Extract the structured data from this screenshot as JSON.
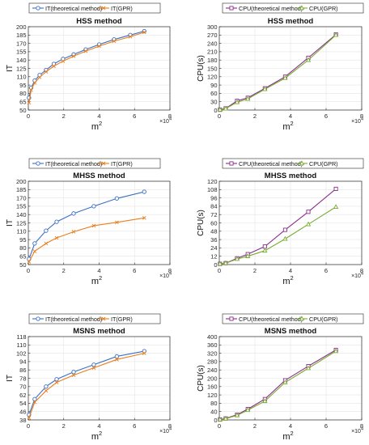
{
  "chart_data": [
    {
      "type": "line",
      "title": "HSS method",
      "xlabel": "m",
      "xlabel_sup": "2",
      "ylabel": "IT",
      "x_multiplier": "×10",
      "x_multiplier_exp": "4",
      "xlim": [
        0,
        8
      ],
      "ylim": [
        50,
        200
      ],
      "x_ticks": [
        "0",
        "2",
        "4",
        "6",
        "8"
      ],
      "y_ticks": [
        "50",
        "65",
        "80",
        "95",
        "110",
        "125",
        "140",
        "155",
        "170",
        "185",
        "200"
      ],
      "y_tick_values": [
        50,
        65,
        80,
        95,
        110,
        125,
        140,
        155,
        170,
        185,
        200
      ],
      "grid": true,
      "legend": "top (outside)",
      "series": [
        {
          "name": "IT(theoretical method)",
          "color": "#3b6fc4",
          "marker": "circle",
          "x": [
            0.04,
            0.16,
            0.36,
            0.64,
            1.0,
            1.44,
            1.96,
            2.56,
            3.24,
            4.0,
            4.84,
            5.76,
            6.55
          ],
          "y": [
            72,
            90,
            103,
            113,
            122,
            133,
            142,
            150,
            159,
            168,
            177,
            185,
            192
          ]
        },
        {
          "name": "IT(GPR)",
          "color": "#e87f1e",
          "marker": "x",
          "x": [
            0.04,
            0.16,
            0.36,
            0.64,
            1.0,
            1.44,
            1.96,
            2.56,
            3.24,
            4.0,
            4.84,
            5.76,
            6.55
          ],
          "y": [
            63,
            86,
            99,
            109,
            119,
            129,
            138,
            147,
            156,
            165,
            174,
            182,
            190
          ]
        }
      ]
    },
    {
      "type": "line",
      "title": "HSS method",
      "xlabel": "m",
      "xlabel_sup": "2",
      "ylabel": "CPU(s)",
      "x_multiplier": "×10",
      "x_multiplier_exp": "4",
      "xlim": [
        0,
        8
      ],
      "ylim": [
        0,
        300
      ],
      "x_ticks": [
        "0",
        "2",
        "4",
        "6",
        "8"
      ],
      "y_ticks": [
        "0",
        "30",
        "60",
        "90",
        "120",
        "150",
        "180",
        "210",
        "240",
        "270",
        "300"
      ],
      "y_tick_values": [
        0,
        30,
        60,
        90,
        120,
        150,
        180,
        210,
        240,
        270,
        300
      ],
      "grid": true,
      "legend": "top (outside)",
      "series": [
        {
          "name": "CPU(theoretical method)",
          "color": "#8b2f8c",
          "marker": "square",
          "x": [
            0.04,
            0.36,
            1.0,
            1.6,
            2.56,
            3.7,
            5.0,
            6.55
          ],
          "y": [
            1,
            6,
            33,
            44,
            78,
            120,
            188,
            272
          ]
        },
        {
          "name": "CPU(GPR)",
          "color": "#77ac30",
          "marker": "triangle",
          "x": [
            0.04,
            0.36,
            1.0,
            1.6,
            2.56,
            3.7,
            5.0,
            6.55
          ],
          "y": [
            1,
            5,
            28,
            40,
            75,
            115,
            180,
            270
          ]
        }
      ]
    },
    {
      "type": "line",
      "title": "MHSS method",
      "xlabel": "m",
      "xlabel_sup": "2",
      "ylabel": "IT",
      "x_multiplier": "×10",
      "x_multiplier_exp": "4",
      "xlim": [
        0,
        8
      ],
      "ylim": [
        50,
        200
      ],
      "x_ticks": [
        "0",
        "2",
        "4",
        "6",
        "8"
      ],
      "y_ticks": [
        "50",
        "65",
        "80",
        "95",
        "110",
        "125",
        "140",
        "155",
        "170",
        "185",
        "200"
      ],
      "y_tick_values": [
        50,
        65,
        80,
        95,
        110,
        125,
        140,
        155,
        170,
        185,
        200
      ],
      "grid": true,
      "legend": "top (outside)",
      "series": [
        {
          "name": "IT(theoretical method)",
          "color": "#3b6fc4",
          "marker": "circle",
          "x": [
            0.04,
            0.36,
            1.0,
            1.6,
            2.56,
            3.7,
            5.0,
            6.55
          ],
          "y": [
            60,
            88,
            111,
            127,
            142,
            155,
            169,
            181
          ]
        },
        {
          "name": "IT(GPR)",
          "color": "#e87f1e",
          "marker": "x",
          "x": [
            0.04,
            0.36,
            1.0,
            1.6,
            2.56,
            3.7,
            5.0,
            6.55
          ],
          "y": [
            55,
            74,
            88,
            98,
            109,
            120,
            126,
            134
          ]
        }
      ]
    },
    {
      "type": "line",
      "title": "MHSS method",
      "xlabel": "m",
      "xlabel_sup": "2",
      "ylabel": "CPU(s)",
      "x_multiplier": "×10",
      "x_multiplier_exp": "4",
      "xlim": [
        0,
        8
      ],
      "ylim": [
        0,
        120
      ],
      "x_ticks": [
        "0",
        "2",
        "4",
        "6",
        "8"
      ],
      "y_ticks": [
        "0",
        "12",
        "24",
        "36",
        "48",
        "60",
        "72",
        "84",
        "96",
        "108",
        "120"
      ],
      "y_tick_values": [
        0,
        12,
        24,
        36,
        48,
        60,
        72,
        84,
        96,
        108,
        120
      ],
      "grid": true,
      "legend": "top (outside)",
      "series": [
        {
          "name": "CPU(theoretical method)",
          "color": "#8b2f8c",
          "marker": "square",
          "x": [
            0.04,
            0.36,
            1.0,
            1.6,
            2.56,
            3.7,
            5.0,
            6.55
          ],
          "y": [
            1,
            2,
            9,
            15,
            26,
            50,
            76,
            109
          ]
        },
        {
          "name": "CPU(GPR)",
          "color": "#77ac30",
          "marker": "triangle",
          "x": [
            0.04,
            0.36,
            1.0,
            1.6,
            2.56,
            3.7,
            5.0,
            6.55
          ],
          "y": [
            1,
            2,
            8,
            12,
            20,
            37,
            58,
            83
          ]
        }
      ]
    },
    {
      "type": "line",
      "title": "MSNS method",
      "xlabel": "m",
      "xlabel_sup": "2",
      "ylabel": "IT",
      "x_multiplier": "×10",
      "x_multiplier_exp": "4",
      "xlim": [
        0,
        8
      ],
      "ylim": [
        38,
        118
      ],
      "x_ticks": [
        "0",
        "2",
        "4",
        "6",
        "8"
      ],
      "y_ticks": [
        "38",
        "46",
        "54",
        "62",
        "70",
        "78",
        "86",
        "94",
        "102",
        "110",
        "118"
      ],
      "y_tick_values": [
        38,
        46,
        54,
        62,
        70,
        78,
        86,
        94,
        102,
        110,
        118
      ],
      "grid": true,
      "legend": "top (outside)",
      "series": [
        {
          "name": "IT(theoretical method)",
          "color": "#3b6fc4",
          "marker": "circle",
          "x": [
            0.04,
            0.36,
            1.0,
            1.6,
            2.56,
            3.7,
            5.0,
            6.55
          ],
          "y": [
            43,
            58,
            70,
            77,
            84,
            91,
            99,
            104
          ]
        },
        {
          "name": "IT(GPR)",
          "color": "#e87f1e",
          "marker": "x",
          "x": [
            0.04,
            0.36,
            1.0,
            1.6,
            2.56,
            3.7,
            5.0,
            6.55
          ],
          "y": [
            40,
            55,
            66,
            74,
            81,
            88,
            96,
            102
          ]
        }
      ]
    },
    {
      "type": "line",
      "title": "MSNS method",
      "xlabel": "m",
      "xlabel_sup": "2",
      "ylabel": "CPU(s)",
      "x_multiplier": "×10",
      "x_multiplier_exp": "4",
      "xlim": [
        0,
        8
      ],
      "ylim": [
        0,
        400
      ],
      "x_ticks": [
        "0",
        "2",
        "4",
        "6",
        "8"
      ],
      "y_ticks": [
        "0",
        "40",
        "80",
        "120",
        "160",
        "200",
        "240",
        "280",
        "320",
        "360",
        "400"
      ],
      "y_tick_values": [
        0,
        40,
        80,
        120,
        160,
        200,
        240,
        280,
        320,
        360,
        400
      ],
      "grid": true,
      "legend": "top (outside)",
      "series": [
        {
          "name": "CPU(theoretical method)",
          "color": "#8b2f8c",
          "marker": "square",
          "x": [
            0.04,
            0.36,
            1.0,
            1.6,
            2.56,
            3.7,
            5.0,
            6.55
          ],
          "y": [
            2,
            7,
            25,
            52,
            100,
            190,
            258,
            336
          ]
        },
        {
          "name": "CPU(GPR)",
          "color": "#77ac30",
          "marker": "triangle",
          "x": [
            0.04,
            0.36,
            1.0,
            1.6,
            2.56,
            3.7,
            5.0,
            6.55
          ],
          "y": [
            2,
            6,
            22,
            47,
            90,
            180,
            248,
            330
          ]
        }
      ]
    }
  ]
}
